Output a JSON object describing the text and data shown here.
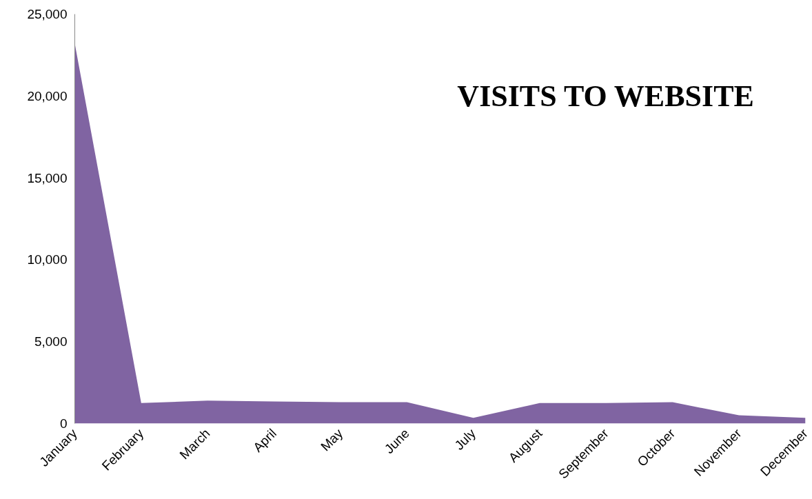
{
  "chart_data": {
    "type": "area",
    "title": "VISITS TO WEBSITE",
    "categories": [
      "January",
      "February",
      "March",
      "April",
      "May",
      "June",
      "July",
      "August",
      "September",
      "October",
      "November",
      "December"
    ],
    "series": [
      {
        "color": "#8064a2",
        "values": [
          23200,
          1250,
          1400,
          1350,
          1300,
          1300,
          350,
          1250,
          1250,
          1300,
          500,
          350
        ]
      }
    ],
    "ylim": [
      0,
      25000
    ],
    "yticks": [
      {
        "value": 0,
        "label": "0"
      },
      {
        "value": 5000,
        "label": "5,000"
      },
      {
        "value": 10000,
        "label": "10,000"
      },
      {
        "value": 15000,
        "label": "15,000"
      },
      {
        "value": 20000,
        "label": "20,000"
      },
      {
        "value": 25000,
        "label": "25,000"
      }
    ],
    "grid": false
  }
}
